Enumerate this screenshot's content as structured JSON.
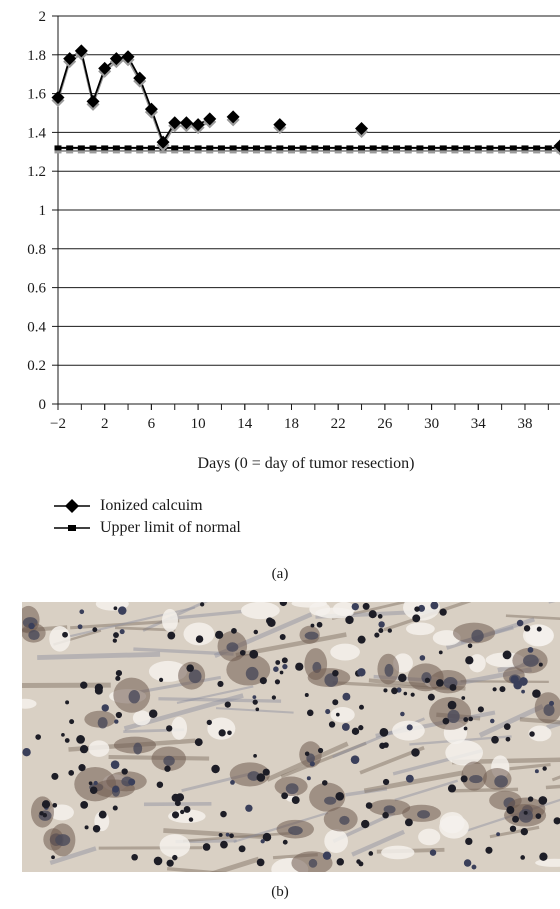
{
  "chart_data": {
    "type": "line",
    "xlabel": "Days (0 = day of tumor resection)",
    "ylabel": "",
    "xlim": [
      -2,
      41
    ],
    "ylim": [
      0,
      2
    ],
    "x_ticks": [
      "−2",
      "2",
      "6",
      "10",
      "14",
      "18",
      "22",
      "26",
      "30",
      "34",
      "38"
    ],
    "y_ticks": [
      "0",
      "0.2",
      "0.4",
      "0.6",
      "0.8",
      "1",
      "1.2",
      "1.4",
      "1.6",
      "1.8",
      "2"
    ],
    "grid": "horizontal",
    "legend_position": "bottom-left",
    "series": [
      {
        "name": "Ionized calcuim",
        "marker": "diamond",
        "color": "#000000",
        "points": [
          {
            "x": -2,
            "y": 1.58,
            "connected": true
          },
          {
            "x": -1,
            "y": 1.78,
            "connected": true
          },
          {
            "x": 0,
            "y": 1.82,
            "connected": true
          },
          {
            "x": 1,
            "y": 1.56,
            "connected": true
          },
          {
            "x": 2,
            "y": 1.73,
            "connected": true
          },
          {
            "x": 3,
            "y": 1.78,
            "connected": true
          },
          {
            "x": 4,
            "y": 1.79,
            "connected": true
          },
          {
            "x": 5,
            "y": 1.68,
            "connected": true
          },
          {
            "x": 6,
            "y": 1.52,
            "connected": true
          },
          {
            "x": 7,
            "y": 1.35,
            "connected": true
          },
          {
            "x": 8,
            "y": 1.45,
            "connected": true
          },
          {
            "x": 9,
            "y": 1.45,
            "connected": true
          },
          {
            "x": 10,
            "y": 1.44,
            "connected": true
          },
          {
            "x": 11,
            "y": 1.47,
            "connected": true
          },
          {
            "x": 13,
            "y": 1.48,
            "connected": false
          },
          {
            "x": 17,
            "y": 1.44,
            "connected": false
          },
          {
            "x": 24,
            "y": 1.42,
            "connected": false
          },
          {
            "x": 41,
            "y": 1.33,
            "connected": false
          }
        ]
      },
      {
        "name": "Upper limit of normal",
        "marker": "square",
        "color": "#000000",
        "constant_y": 1.32,
        "x_start": -2,
        "x_end": 41,
        "x_step": 1
      }
    ]
  },
  "captions": {
    "a": "(a)",
    "b": "(b)"
  }
}
